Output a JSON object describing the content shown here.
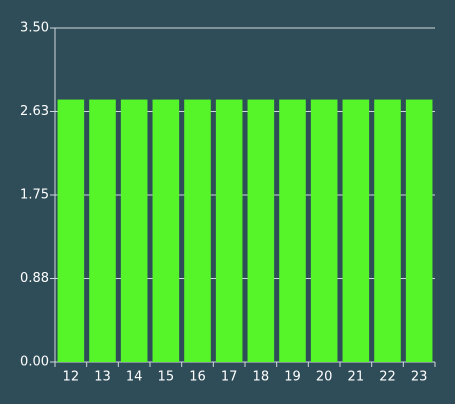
{
  "chart_data": {
    "type": "bar",
    "categories": [
      "12",
      "13",
      "14",
      "15",
      "16",
      "17",
      "18",
      "19",
      "20",
      "21",
      "22",
      "23"
    ],
    "values": [
      2.75,
      2.75,
      2.75,
      2.75,
      2.75,
      2.75,
      2.75,
      2.75,
      2.75,
      2.75,
      2.75,
      2.75
    ],
    "color": "#55f52a",
    "ylim": [
      0,
      3.5
    ],
    "yticks": [
      {
        "value": 0,
        "label": "0.00"
      },
      {
        "value": 0.875,
        "label": "0.88"
      },
      {
        "value": 1.75,
        "label": "1.75"
      },
      {
        "value": 2.625,
        "label": "2.63"
      },
      {
        "value": 3.5,
        "label": "3.50"
      }
    ],
    "grid": true
  }
}
